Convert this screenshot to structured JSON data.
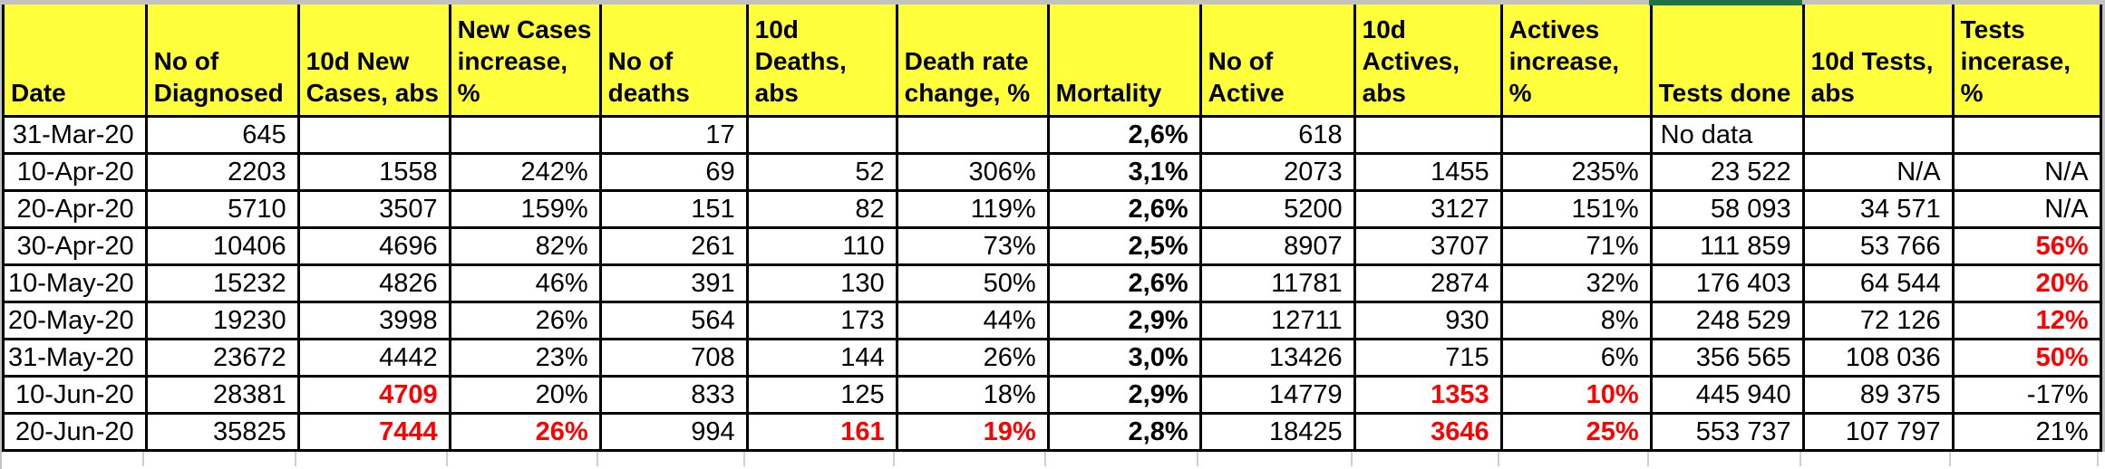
{
  "colors": {
    "header_bg": "#ffff3b",
    "cell_red": "#ff0000",
    "selection_green": "#217346",
    "grid_gray": "#c2c2c2",
    "border_black": "#000000"
  },
  "table": {
    "columns": [
      {
        "label": "Date"
      },
      {
        "label": "No of\nDiagnosed"
      },
      {
        "label": "10d New\nCases, abs"
      },
      {
        "label": "New Cases\nincrease, %"
      },
      {
        "label": "No of\ndeaths"
      },
      {
        "label": "10d\nDeaths, abs"
      },
      {
        "label": "Death rate\nchange, %"
      },
      {
        "label": "Mortality",
        "bold": true
      },
      {
        "label": "No of\nActive"
      },
      {
        "label": "10d\nActives,\nabs"
      },
      {
        "label": "Actives\nincrease, %"
      },
      {
        "label": "Tests done"
      },
      {
        "label": "10d Tests,\nabs"
      },
      {
        "label": "Tests\nincerase, %"
      }
    ],
    "rows": [
      [
        "31-Mar-20",
        "645",
        "",
        "",
        "17",
        "",
        "",
        "2,6%",
        "618",
        "",
        "",
        {
          "v": "No data",
          "align": "left"
        },
        "",
        ""
      ],
      [
        "10-Apr-20",
        "2203",
        "1558",
        "242%",
        "69",
        "52",
        "306%",
        "3,1%",
        "2073",
        "1455",
        "235%",
        "23 522",
        "N/A",
        "N/A"
      ],
      [
        "20-Apr-20",
        "5710",
        "3507",
        "159%",
        "151",
        "82",
        "119%",
        "2,6%",
        "5200",
        "3127",
        "151%",
        "58 093",
        "34 571",
        "N/A"
      ],
      [
        "30-Apr-20",
        "10406",
        "4696",
        "82%",
        "261",
        "110",
        "73%",
        "2,5%",
        "8907",
        "3707",
        "71%",
        "111 859",
        "53 766",
        {
          "v": "56%",
          "s": "red"
        }
      ],
      [
        "10-May-20",
        "15232",
        "4826",
        "46%",
        "391",
        "130",
        "50%",
        "2,6%",
        "11781",
        "2874",
        "32%",
        "176 403",
        "64 544",
        {
          "v": "20%",
          "s": "red"
        }
      ],
      [
        "20-May-20",
        "19230",
        "3998",
        "26%",
        "564",
        "173",
        "44%",
        "2,9%",
        "12711",
        "930",
        "8%",
        "248 529",
        "72 126",
        {
          "v": "12%",
          "s": "red"
        }
      ],
      [
        "31-May-20",
        "23672",
        "4442",
        "23%",
        "708",
        "144",
        "26%",
        "3,0%",
        "13426",
        "715",
        "6%",
        "356 565",
        "108 036",
        {
          "v": "50%",
          "s": "red"
        }
      ],
      [
        "10-Jun-20",
        "28381",
        {
          "v": "4709",
          "s": "red"
        },
        "20%",
        "833",
        "125",
        "18%",
        "2,9%",
        "14779",
        {
          "v": "1353",
          "s": "red"
        },
        {
          "v": "10%",
          "s": "red"
        },
        "445 940",
        "89 375",
        "-17%"
      ],
      [
        "20-Jun-20",
        "35825",
        {
          "v": "7444",
          "s": "red"
        },
        {
          "v": "26%",
          "s": "red"
        },
        "994",
        {
          "v": "161",
          "s": "red"
        },
        {
          "v": "19%",
          "s": "red"
        },
        "2,8%",
        "18425",
        {
          "v": "3646",
          "s": "red"
        },
        {
          "v": "25%",
          "s": "red"
        },
        "553 737",
        "107 797",
        "21%"
      ]
    ]
  }
}
